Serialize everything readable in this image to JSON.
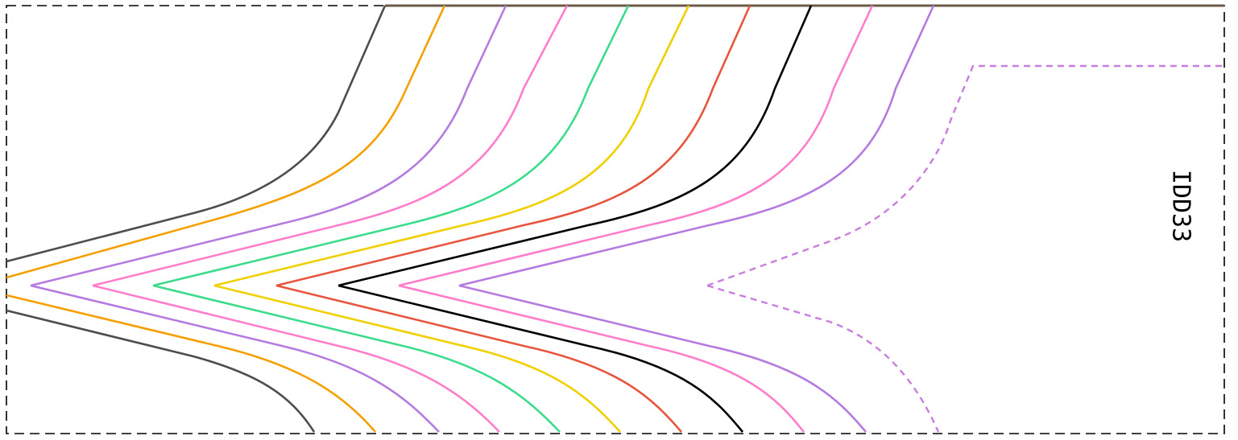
{
  "region": {
    "label": "IDD33",
    "border_color": "#000000",
    "border_style": "dashed"
  },
  "wires": [
    {
      "color": "#4d4d4d",
      "style": "solid"
    },
    {
      "color": "#f5a000",
      "style": "solid"
    },
    {
      "color": "#b57be0",
      "style": "solid"
    },
    {
      "color": "#ff7ecb",
      "style": "solid"
    },
    {
      "color": "#3ddc8c",
      "style": "solid"
    },
    {
      "color": "#f0d000",
      "style": "solid"
    },
    {
      "color": "#e8553f",
      "style": "solid"
    },
    {
      "color": "#000000",
      "style": "solid"
    },
    {
      "color": "#ff7ecb",
      "style": "solid"
    },
    {
      "color": "#b57be0",
      "style": "solid"
    },
    {
      "color": "#c77ee0",
      "style": "dashed"
    }
  ]
}
